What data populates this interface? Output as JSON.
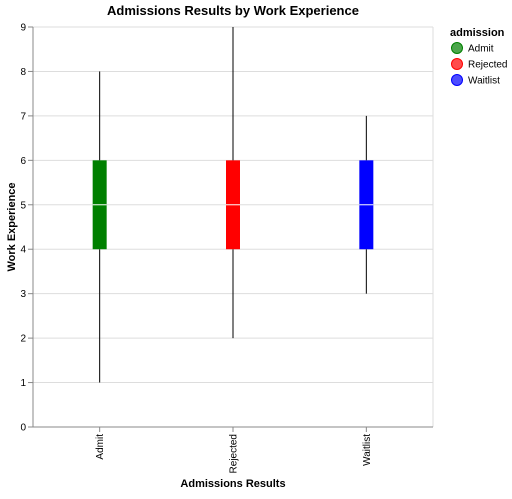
{
  "chart_data": {
    "type": "boxplot",
    "title": "Admissions Results by Work Experience",
    "xlabel": "Admissions Results",
    "ylabel": "Work Experience",
    "ylim": [
      0,
      9
    ],
    "yticks": [
      "0",
      "1",
      "2",
      "3",
      "4",
      "5",
      "6",
      "7",
      "8",
      "9"
    ],
    "grid": true,
    "legend_position": "top-right",
    "legend_title": "admission",
    "categories": [
      "Admit",
      "Rejected",
      "Waitlist"
    ],
    "series": [
      {
        "name": "Admit",
        "color": "#008000",
        "min": 1,
        "q1": 4,
        "median": 5,
        "q3": 6,
        "max": 8
      },
      {
        "name": "Rejected",
        "color": "#ff0000",
        "min": 2,
        "q1": 4,
        "median": 5,
        "q3": 6,
        "max": 9
      },
      {
        "name": "Waitlist",
        "color": "#0000ff",
        "min": 3,
        "q1": 4,
        "median": 5,
        "q3": 6,
        "max": 7
      }
    ]
  }
}
